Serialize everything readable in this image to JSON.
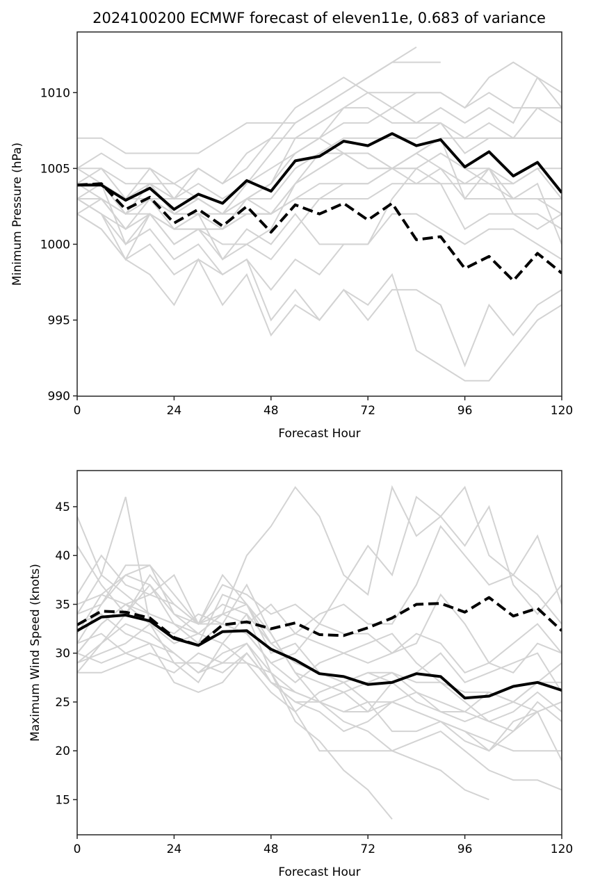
{
  "title": "2024100200 ECMWF forecast of eleven11e, 0.683 of variance",
  "colors": {
    "member": "#d3d3d3",
    "mean": "#000000",
    "dashed": "#000000",
    "axis": "#262626"
  },
  "chart_data": [
    {
      "type": "line",
      "name": "pressure",
      "xlabel": "Forecast Hour",
      "ylabel": "Minimum Pressure (hPa)",
      "xlim": [
        0,
        120
      ],
      "ylim": [
        989.98,
        1014.0
      ],
      "xticks": [
        0,
        24,
        48,
        72,
        96,
        120
      ],
      "yticks": [
        990,
        995,
        1000,
        1005,
        1010
      ],
      "grid": false,
      "x": [
        0,
        6,
        12,
        18,
        24,
        30,
        36,
        42,
        48,
        54,
        60,
        66,
        72,
        78,
        84,
        90,
        96,
        102,
        108,
        114,
        120
      ],
      "series": [
        {
          "name": "solid",
          "style": "solid",
          "values": [
            1003.9,
            1003.9,
            1002.9,
            1003.7,
            1002.3,
            1003.3,
            1002.7,
            1004.2,
            1003.5,
            1005.5,
            1005.8,
            1006.8,
            1006.5,
            1007.3,
            1006.5,
            1006.9,
            1005.1,
            1006.1,
            1004.5,
            1005.4,
            1003.4
          ]
        },
        {
          "name": "dashed",
          "style": "dashed",
          "values": [
            1003.9,
            1004.0,
            1002.3,
            1003.1,
            1001.4,
            1002.3,
            1001.2,
            1002.5,
            1000.8,
            1002.6,
            1002.0,
            1002.7,
            1001.6,
            1002.7,
            1000.3,
            1000.5,
            998.4,
            999.2,
            997.6,
            999.4,
            998.1
          ]
        }
      ],
      "members": [
        [
          1007,
          1007,
          1006,
          1006,
          1006,
          1006,
          1007,
          1008,
          1008,
          1008,
          1009,
          1010,
          1011,
          1012,
          1013
        ],
        [
          1005,
          1006,
          1005,
          1005,
          1004,
          1005,
          1004,
          1005,
          1007,
          1009,
          1010,
          1011,
          1010,
          1010,
          1010,
          1010,
          1009,
          1011,
          1012,
          1011,
          1009
        ],
        [
          1004,
          1005,
          1003,
          1005,
          1003,
          1004,
          1003,
          1004,
          1006,
          1008,
          1009,
          1010,
          1011,
          1012,
          1012,
          1012
        ],
        [
          1003,
          1004,
          1003,
          1004,
          1003,
          1005,
          1004,
          1006,
          1007,
          1007,
          1008,
          1009,
          1010,
          1009,
          1010,
          1010,
          1009,
          1010,
          1009,
          1009,
          1009
        ],
        [
          1004,
          1003,
          1002,
          1004,
          1002,
          1003,
          1002,
          1004,
          1005,
          1006,
          1007,
          1008,
          1008,
          1009,
          1008,
          1009,
          1008,
          1009,
          1008,
          1011,
          1010
        ],
        [
          1005,
          1005,
          1004,
          1004,
          1004,
          1003,
          1002,
          1003,
          1004,
          1006,
          1007,
          1009,
          1009,
          1008,
          1008,
          1008,
          1007,
          1008,
          1007,
          1007,
          1007
        ],
        [
          1003,
          1003,
          1002,
          1002,
          1001,
          1002,
          1001,
          1003,
          1003,
          1005,
          1006,
          1007,
          1007,
          1007,
          1007,
          1008,
          1006,
          1007,
          1007,
          1009,
          1008
        ],
        [
          1002,
          1003,
          1001,
          1002,
          1000,
          1001,
          1001,
          1002,
          1002,
          1004,
          1006,
          1006,
          1006,
          1005,
          1005,
          1006,
          1005,
          1005,
          1002,
          1002,
          1001
        ],
        [
          1004,
          1004,
          1003,
          1003,
          1002,
          1002,
          1002,
          1003,
          1004,
          1007,
          1007,
          1006,
          1005,
          1005,
          1006,
          1005,
          1004,
          1005,
          1003,
          1004,
          1000
        ],
        [
          1003,
          1002,
          1001,
          1003,
          1001,
          1001,
          1001,
          1002,
          1002,
          1003,
          1003,
          1003,
          1003,
          1004,
          1004,
          1004,
          1004,
          1004,
          1004,
          1005,
          1005
        ],
        [
          1005,
          1004,
          1003,
          1003,
          1003,
          1003,
          1002,
          1002,
          1002,
          1004,
          1005,
          1006,
          1006,
          1005,
          1006,
          1007,
          1007,
          1007,
          1007,
          1007,
          1007
        ],
        [
          1004,
          1004,
          1000,
          1002,
          1001,
          1001,
          999,
          1000,
          1001,
          1004,
          1005,
          1006,
          1005,
          1005,
          1005,
          1006,
          1005,
          1004,
          1003,
          1003,
          1002
        ],
        [
          1003,
          1002,
          999,
          1002,
          1000,
          1001,
          1000,
          1000,
          999,
          1001,
          1003,
          1004,
          1004,
          1005,
          1006,
          1007,
          1003,
          1005,
          1004,
          1005,
          1003
        ],
        [
          1003,
          1002,
          1000,
          1001,
          999,
          1000,
          998,
          999,
          997,
          999,
          998,
          1000,
          1000,
          1003,
          1005,
          1004,
          1001,
          1002,
          1002,
          1001,
          1002
        ],
        [
          1002,
          1001,
          999,
          1000,
          998,
          999,
          998,
          999,
          995,
          997,
          995,
          997,
          996,
          998,
          993,
          992,
          991,
          991,
          993,
          995,
          996
        ],
        [
          1002,
          1001,
          999,
          998,
          996,
          999,
          996,
          998,
          994,
          996,
          995,
          997,
          995,
          997,
          997,
          996,
          992,
          996,
          994,
          996,
          997
        ],
        [
          1003,
          1003,
          1001,
          1002,
          1001,
          1002,
          999,
          1001,
          1000,
          1002,
          1000,
          1000,
          1000,
          1002,
          1002,
          1001,
          1000,
          1001,
          1001,
          1000,
          999
        ],
        [
          1004,
          1004,
          1002,
          1003,
          1002,
          1002,
          1001,
          1003,
          1002,
          1003,
          1004,
          1004,
          1004,
          1005,
          1004,
          1005,
          1003,
          1003,
          1003,
          1003,
          1003
        ]
      ]
    },
    {
      "type": "line",
      "name": "wind",
      "xlabel": "Forecast Hour",
      "ylabel": "Maximum Wind Speed (knots)",
      "xlim": [
        0,
        120
      ],
      "ylim": [
        11.4,
        48.7
      ],
      "xticks": [
        0,
        24,
        48,
        72,
        96,
        120
      ],
      "yticks": [
        15,
        20,
        25,
        30,
        35,
        40,
        45
      ],
      "grid": false,
      "x": [
        0,
        6,
        12,
        18,
        24,
        30,
        36,
        42,
        48,
        54,
        60,
        66,
        72,
        78,
        84,
        90,
        96,
        102,
        108,
        114,
        120
      ],
      "series": [
        {
          "name": "solid",
          "style": "solid",
          "values": [
            32.3,
            33.7,
            33.9,
            33.3,
            31.5,
            30.8,
            32.2,
            32.3,
            30.4,
            29.3,
            27.9,
            27.6,
            26.8,
            27.0,
            27.9,
            27.6,
            25.4,
            25.6,
            26.6,
            27.0,
            26.2
          ]
        },
        {
          "name": "dashed",
          "style": "dashed",
          "values": [
            32.9,
            34.3,
            34.2,
            33.6,
            31.6,
            30.8,
            32.9,
            33.2,
            32.5,
            33.1,
            31.9,
            31.8,
            32.6,
            33.6,
            35.0,
            35.1,
            34.2,
            35.7,
            33.8,
            34.6,
            32.3
          ]
        }
      ],
      "members": [
        [
          44,
          38,
          36,
          34,
          33,
          32,
          34,
          40,
          43,
          47,
          44,
          38,
          36,
          47,
          42,
          44,
          47,
          40,
          38,
          42,
          35
        ],
        [
          41,
          37,
          34,
          38,
          35,
          33,
          37,
          36,
          34,
          35,
          33,
          37,
          41,
          38,
          46,
          44,
          41,
          45,
          37,
          34,
          37
        ],
        [
          36,
          40,
          37,
          36,
          38,
          33,
          35,
          34,
          31,
          32,
          34,
          35,
          33,
          33,
          37,
          43,
          40,
          37,
          38,
          36,
          33
        ],
        [
          34,
          38,
          46,
          33,
          32,
          34,
          33,
          32,
          29,
          30,
          33,
          32,
          32,
          30,
          31,
          36,
          33,
          29,
          28,
          31,
          30
        ],
        [
          30,
          33,
          35,
          36,
          35,
          33,
          34,
          33,
          35,
          32,
          31,
          30,
          31,
          32,
          29,
          27,
          26,
          26,
          25,
          27,
          29
        ],
        [
          31,
          35,
          38,
          39,
          36,
          33,
          38,
          35,
          30,
          31,
          28,
          27,
          25,
          22,
          22,
          23,
          21,
          20,
          22,
          24,
          25
        ],
        [
          29,
          31,
          34,
          37,
          34,
          33,
          33,
          37,
          32,
          28,
          25,
          23,
          22,
          20,
          19,
          18,
          16,
          15
        ],
        [
          30,
          33,
          35,
          33,
          29,
          27,
          31,
          34,
          28,
          24,
          20,
          20,
          20,
          20,
          21,
          22,
          20,
          18,
          17,
          17,
          16
        ],
        [
          33,
          34,
          32,
          31,
          27,
          26,
          27,
          30,
          27,
          26,
          25,
          24,
          25,
          25,
          26,
          25,
          24,
          23,
          24,
          26,
          24
        ],
        [
          28,
          31,
          33,
          32,
          30,
          28,
          30,
          31,
          28,
          23,
          21,
          18,
          16,
          13
        ],
        [
          35,
          36,
          35,
          34,
          33,
          31,
          36,
          35,
          32,
          28,
          27,
          26,
          24,
          27,
          28,
          30,
          27,
          28,
          29,
          30,
          26
        ],
        [
          31,
          32,
          30,
          29,
          28,
          30,
          29,
          31,
          27,
          25,
          24,
          22,
          23,
          25,
          24,
          23,
          22,
          20,
          23,
          24,
          25
        ],
        [
          29,
          30,
          31,
          33,
          31,
          32,
          31,
          29,
          26,
          24,
          26,
          27,
          28,
          28,
          27,
          27,
          25,
          23,
          22,
          25,
          23
        ],
        [
          32,
          36,
          38,
          37,
          33,
          31,
          33,
          32,
          29,
          27,
          29,
          30,
          29,
          30,
          32,
          31,
          28,
          29,
          31,
          33,
          30
        ],
        [
          30,
          29,
          30,
          31,
          30,
          28,
          29,
          29,
          28,
          26,
          25,
          26,
          27,
          28,
          26,
          24,
          23,
          24,
          25,
          24,
          19
        ],
        [
          34,
          35,
          39,
          39,
          34,
          32,
          34,
          35,
          31,
          29,
          28,
          27,
          28,
          27,
          25,
          24,
          24,
          26,
          25,
          27,
          27
        ],
        [
          28,
          28,
          29,
          30,
          29,
          29,
          28,
          30,
          27,
          25,
          25,
          24,
          24,
          25,
          24,
          23,
          22,
          21,
          20,
          20,
          20
        ]
      ]
    }
  ]
}
